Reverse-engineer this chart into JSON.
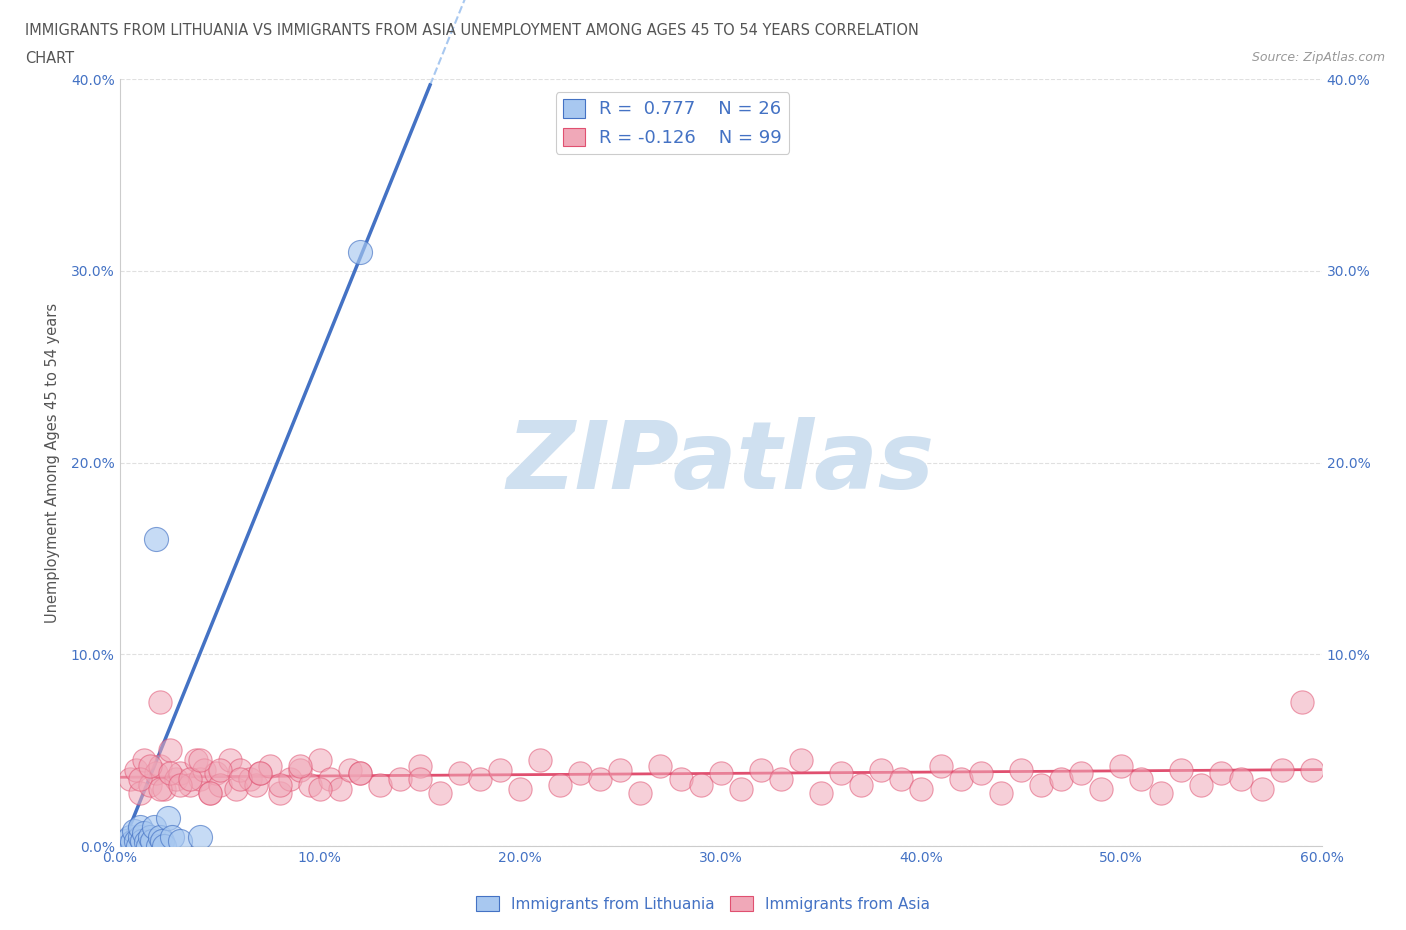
{
  "title_line1": "IMMIGRANTS FROM LITHUANIA VS IMMIGRANTS FROM ASIA UNEMPLOYMENT AMONG AGES 45 TO 54 YEARS CORRELATION",
  "title_line2": "CHART",
  "source": "Source: ZipAtlas.com",
  "ylabel": "Unemployment Among Ages 45 to 54 years",
  "xlim": [
    0.0,
    0.6
  ],
  "ylim": [
    0.0,
    0.4
  ],
  "xticks": [
    0.0,
    0.1,
    0.2,
    0.3,
    0.4,
    0.5,
    0.6
  ],
  "xticklabels": [
    "0.0%",
    "10.0%",
    "20.0%",
    "30.0%",
    "40.0%",
    "50.0%",
    "60.0%"
  ],
  "yticks": [
    0.0,
    0.1,
    0.2,
    0.3,
    0.4
  ],
  "yticklabels": [
    "0.0%",
    "10.0%",
    "20.0%",
    "30.0%",
    "40.0%"
  ],
  "right_yticks": [
    0.1,
    0.2,
    0.3,
    0.4
  ],
  "right_yticklabels": [
    "10.0%",
    "20.0%",
    "30.0%",
    "40.0%"
  ],
  "legend_R1": "0.777",
  "legend_N1": "26",
  "legend_R2": "-0.126",
  "legend_N2": "99",
  "color_lithuania": "#a8c8f0",
  "color_asia": "#f0a8b8",
  "color_trend_lithuania": "#4472c4",
  "color_trend_asia": "#e05070",
  "color_trend_dashed": "#a8c8f0",
  "watermark_color": "#cfe0f0",
  "background_color": "#ffffff",
  "grid_color": "#e0e0e0",
  "title_color": "#555555",
  "tick_color": "#4472c4",
  "lith_x": [
    0.003,
    0.004,
    0.005,
    0.006,
    0.007,
    0.008,
    0.009,
    0.01,
    0.01,
    0.011,
    0.012,
    0.013,
    0.014,
    0.015,
    0.016,
    0.017,
    0.018,
    0.019,
    0.02,
    0.021,
    0.022,
    0.024,
    0.026,
    0.03,
    0.04,
    0.12
  ],
  "lith_y": [
    0.003,
    0.0,
    0.005,
    0.002,
    0.008,
    0.003,
    0.0,
    0.005,
    0.01,
    0.003,
    0.007,
    0.002,
    0.0,
    0.005,
    0.003,
    0.01,
    0.16,
    0.0,
    0.005,
    0.003,
    0.0,
    0.015,
    0.005,
    0.003,
    0.005,
    0.31
  ],
  "asia_x": [
    0.005,
    0.008,
    0.01,
    0.012,
    0.015,
    0.018,
    0.02,
    0.022,
    0.025,
    0.028,
    0.03,
    0.035,
    0.038,
    0.04,
    0.042,
    0.045,
    0.048,
    0.05,
    0.055,
    0.058,
    0.06,
    0.065,
    0.068,
    0.07,
    0.075,
    0.08,
    0.085,
    0.09,
    0.095,
    0.1,
    0.105,
    0.11,
    0.115,
    0.12,
    0.13,
    0.14,
    0.15,
    0.16,
    0.17,
    0.18,
    0.19,
    0.2,
    0.21,
    0.22,
    0.23,
    0.24,
    0.25,
    0.26,
    0.27,
    0.28,
    0.29,
    0.3,
    0.31,
    0.32,
    0.33,
    0.34,
    0.35,
    0.36,
    0.37,
    0.38,
    0.39,
    0.4,
    0.41,
    0.42,
    0.43,
    0.44,
    0.45,
    0.46,
    0.47,
    0.48,
    0.49,
    0.5,
    0.51,
    0.52,
    0.53,
    0.54,
    0.55,
    0.56,
    0.57,
    0.58,
    0.01,
    0.015,
    0.02,
    0.025,
    0.03,
    0.035,
    0.04,
    0.045,
    0.05,
    0.06,
    0.07,
    0.08,
    0.09,
    0.1,
    0.12,
    0.15,
    0.59,
    0.595,
    0.02
  ],
  "asia_y": [
    0.035,
    0.04,
    0.028,
    0.045,
    0.032,
    0.038,
    0.042,
    0.03,
    0.05,
    0.035,
    0.038,
    0.032,
    0.045,
    0.035,
    0.04,
    0.028,
    0.038,
    0.032,
    0.045,
    0.03,
    0.04,
    0.035,
    0.032,
    0.038,
    0.042,
    0.028,
    0.035,
    0.04,
    0.032,
    0.045,
    0.035,
    0.03,
    0.04,
    0.038,
    0.032,
    0.035,
    0.042,
    0.028,
    0.038,
    0.035,
    0.04,
    0.03,
    0.045,
    0.032,
    0.038,
    0.035,
    0.04,
    0.028,
    0.042,
    0.035,
    0.032,
    0.038,
    0.03,
    0.04,
    0.035,
    0.045,
    0.028,
    0.038,
    0.032,
    0.04,
    0.035,
    0.03,
    0.042,
    0.035,
    0.038,
    0.028,
    0.04,
    0.032,
    0.035,
    0.038,
    0.03,
    0.042,
    0.035,
    0.028,
    0.04,
    0.032,
    0.038,
    0.035,
    0.03,
    0.04,
    0.035,
    0.042,
    0.03,
    0.038,
    0.032,
    0.035,
    0.045,
    0.028,
    0.04,
    0.035,
    0.038,
    0.032,
    0.042,
    0.03,
    0.038,
    0.035,
    0.075,
    0.04,
    0.075
  ]
}
